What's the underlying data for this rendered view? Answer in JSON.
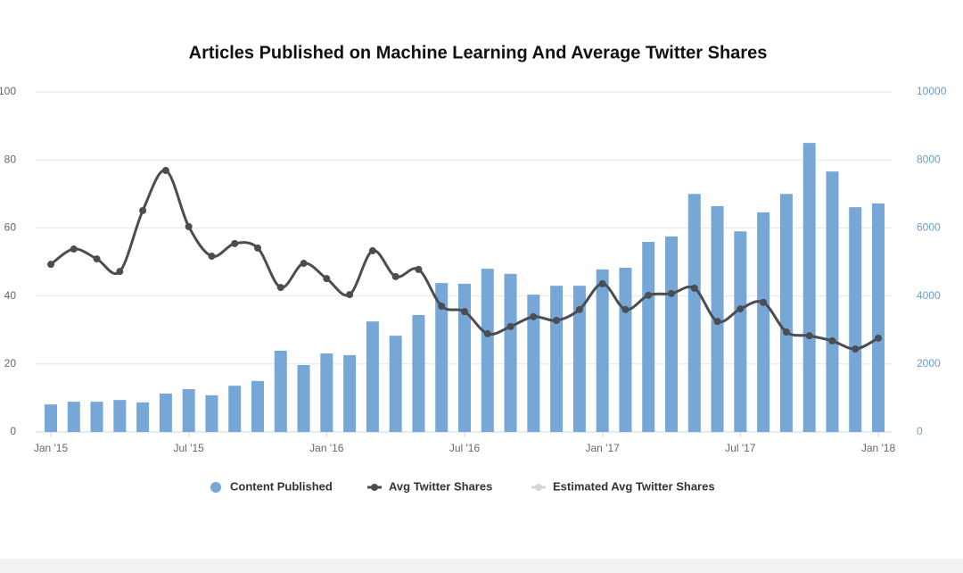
{
  "chart_data": {
    "type": "bar-line",
    "title": "Articles Published on Machine Learning And Average Twitter Shares",
    "categories": [
      "Jan '15",
      null,
      null,
      null,
      null,
      null,
      "Jul '15",
      null,
      null,
      null,
      null,
      null,
      "Jan '16",
      null,
      null,
      null,
      null,
      null,
      "Jul '16",
      null,
      null,
      null,
      null,
      null,
      "Jan '17",
      null,
      null,
      null,
      null,
      null,
      "Jul '17",
      null,
      null,
      null,
      null,
      null,
      "Jan '18"
    ],
    "ylim": [
      0,
      100
    ],
    "yticks": [
      0,
      20,
      40,
      60,
      80,
      100
    ],
    "y2lim": [
      0,
      10000
    ],
    "y2ticks": [
      0,
      2000,
      4000,
      6000,
      8000,
      10000
    ],
    "grid": true,
    "legend": "bottom",
    "series": [
      {
        "name": "Content Published",
        "type": "bar",
        "color": "#76a7d6",
        "values": [
          8.1,
          8.9,
          8.9,
          9.4,
          8.7,
          11.3,
          12.6,
          10.8,
          13.6,
          15,
          23.9,
          19.7,
          23.1,
          22.6,
          32.5,
          28.3,
          34.4,
          43.8,
          43.6,
          48,
          46.5,
          40.4,
          43,
          43,
          47.8,
          48.3,
          55.9,
          57.5,
          70,
          66.4,
          59,
          64.6,
          70,
          85,
          76.6,
          66.1,
          67.2
        ]
      },
      {
        "name": "Avg Twitter Shares",
        "type": "line",
        "axis": "y2",
        "color": "#4a4d52",
        "values": [
          4930,
          5380,
          5090,
          4720,
          6510,
          7690,
          6040,
          5170,
          5540,
          5410,
          4250,
          4960,
          4510,
          4040,
          5330,
          4570,
          4780,
          3700,
          3540,
          2890,
          3100,
          3390,
          3280,
          3600,
          4360,
          3600,
          4020,
          4070,
          4230,
          3250,
          3620,
          3810,
          2940,
          2830,
          2680,
          2440,
          2760
        ]
      },
      {
        "name": "Estimated Avg Twitter Shares",
        "type": "line",
        "axis": "y2",
        "color": "#d6d6d6",
        "values": [
          null,
          null,
          null,
          null,
          null,
          null,
          null,
          null,
          null,
          null,
          null,
          null,
          null,
          null,
          null,
          null,
          null,
          null,
          null,
          null,
          null,
          null,
          null,
          null,
          null,
          null,
          null,
          null,
          null,
          null,
          null,
          null,
          null,
          null,
          null,
          null,
          null
        ]
      }
    ]
  }
}
